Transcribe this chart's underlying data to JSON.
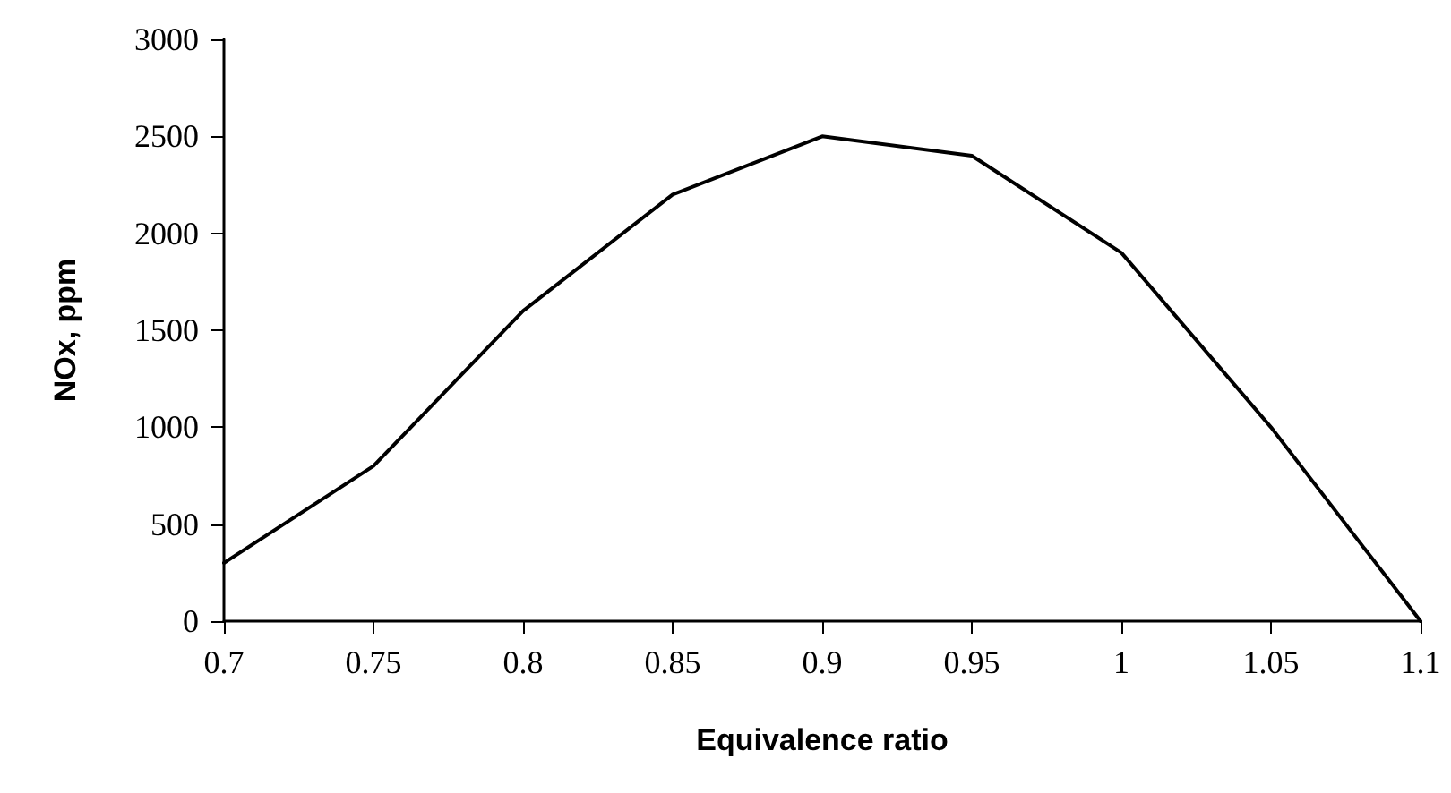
{
  "chart_data": {
    "type": "line",
    "xlabel": "Equivalence ratio",
    "ylabel": "NOx, ppm",
    "x": [
      0.7,
      0.75,
      0.8,
      0.85,
      0.9,
      0.95,
      1,
      1.05,
      1.1
    ],
    "series": [
      {
        "color": "#000000",
        "values": [
          300,
          800,
          1600,
          2200,
          2500,
          2400,
          1900,
          1000,
          0
        ]
      }
    ],
    "xlim": [
      0.7,
      1.1
    ],
    "xticks": [
      0.7,
      0.75,
      0.8,
      0.85,
      0.9,
      0.95,
      1,
      1.05,
      1.1
    ],
    "ylim": [
      0,
      3000
    ],
    "yticks": [
      0,
      500,
      1000,
      1500,
      2000,
      2500,
      3000
    ],
    "grid": false,
    "marker": "none",
    "line_style": "solid"
  }
}
